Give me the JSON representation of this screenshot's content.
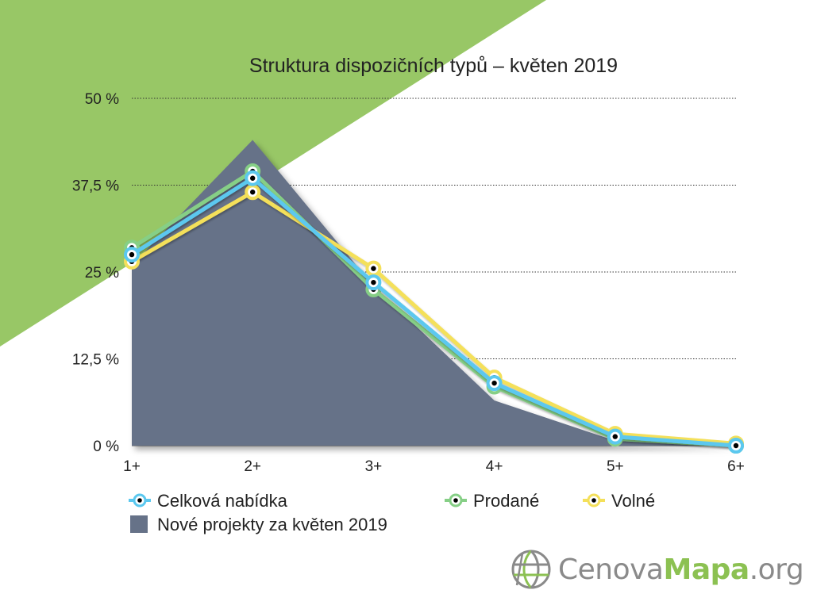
{
  "colors": {
    "background_accent": "#98c766",
    "area_fill": "#667288",
    "celkova": "#5bc8ef",
    "prodane": "#86cf86",
    "volne": "#f4e05a",
    "marker_center": "#000000",
    "logo_green": "#8cc152",
    "logo_gray": "#8a8a8a"
  },
  "chart_data": {
    "type": "line",
    "title": "Struktura dispozičních typů – květen 2019",
    "xlabel": "",
    "ylabel": "",
    "categories": [
      "1+",
      "2+",
      "3+",
      "4+",
      "5+",
      "6+"
    ],
    "y_ticks": [
      "0 %",
      "12,5 %",
      "25 %",
      "37,5 %",
      "50 %"
    ],
    "ylim": [
      0,
      50
    ],
    "grid": "horizontal dotted",
    "legend_position": "bottom",
    "series": [
      {
        "name": "Celková nabídka",
        "kind": "line",
        "color": "#5bc8ef",
        "values": [
          27.5,
          38.5,
          23.5,
          9.0,
          1.3,
          0.0
        ]
      },
      {
        "name": "Prodané",
        "kind": "line",
        "color": "#86cf86",
        "values": [
          28.5,
          39.5,
          22.5,
          8.5,
          1.0,
          0.0
        ]
      },
      {
        "name": "Volné",
        "kind": "line",
        "color": "#f4e05a",
        "values": [
          26.5,
          36.5,
          25.5,
          9.8,
          1.7,
          0.3
        ]
      },
      {
        "name": "Nové projekty za květen 2019",
        "kind": "area",
        "color": "#667288",
        "values": [
          26.0,
          44.0,
          23.0,
          6.5,
          0.7,
          0.0
        ]
      }
    ]
  },
  "logo": {
    "part1": "Cenova",
    "part2": "Mapa",
    "part3": ".org",
    "icon": "globe-grid-icon"
  }
}
